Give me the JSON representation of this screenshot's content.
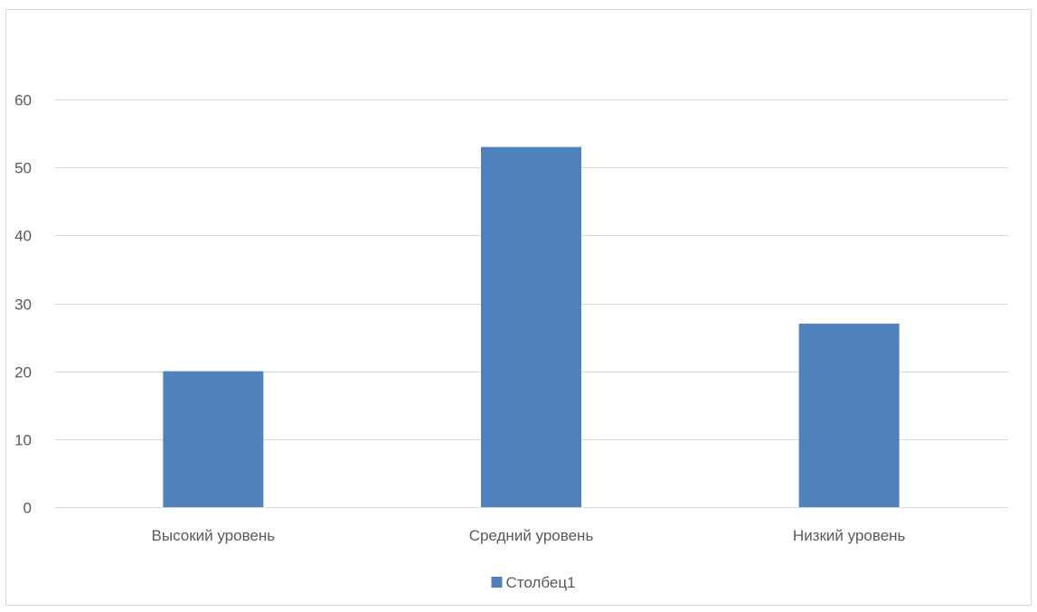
{
  "chart_data": {
    "type": "bar",
    "categories": [
      "Высокий уровень",
      "Средний уровень",
      "Низкий уровень"
    ],
    "series": [
      {
        "name": "Столбец1",
        "values": [
          20,
          53,
          27
        ],
        "color": "#4f81bd"
      }
    ],
    "ylim": [
      0,
      60
    ],
    "yticks": [
      0,
      10,
      20,
      30,
      40,
      50,
      60
    ],
    "grid": true,
    "legend_position": "bottom",
    "gridline_color": "#d9d9d9",
    "axis_line_color": "#d9d9d9",
    "text_color": "#595959"
  }
}
